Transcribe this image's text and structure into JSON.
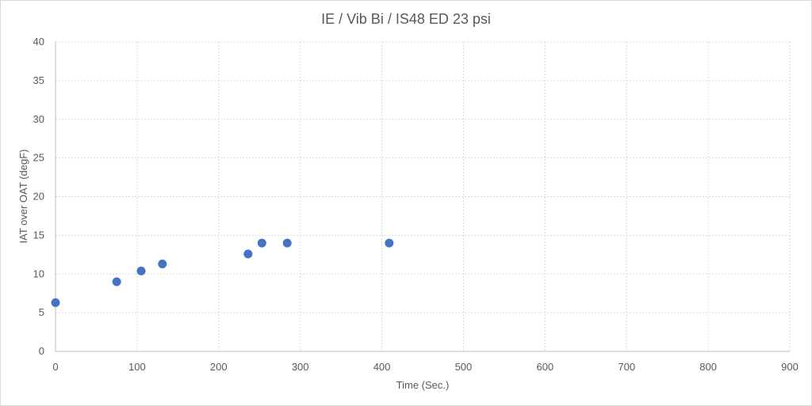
{
  "chart_data": {
    "type": "scatter",
    "title": "IE / Vib Bi / IS48 ED 23 psi",
    "xlabel": "Time (Sec.)",
    "ylabel": "IAT over OAT (degF)",
    "xlim": [
      0,
      900
    ],
    "ylim": [
      0,
      40
    ],
    "xticks": [
      0,
      100,
      200,
      300,
      400,
      500,
      600,
      700,
      800,
      900
    ],
    "yticks": [
      0,
      5,
      10,
      15,
      20,
      25,
      30,
      35,
      40
    ],
    "grid": true,
    "legend": "none",
    "series": [
      {
        "color": "#4472c4",
        "points": [
          {
            "x": 0,
            "y": 6.3
          },
          {
            "x": 75,
            "y": 9.0
          },
          {
            "x": 105,
            "y": 10.4
          },
          {
            "x": 131,
            "y": 11.3
          },
          {
            "x": 236,
            "y": 12.6
          },
          {
            "x": 253,
            "y": 14.0
          },
          {
            "x": 284,
            "y": 14.0
          },
          {
            "x": 409,
            "y": 14.0
          }
        ]
      }
    ]
  }
}
